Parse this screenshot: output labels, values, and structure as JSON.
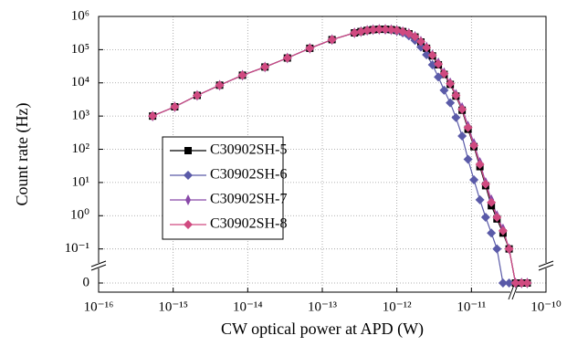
{
  "chart_data": {
    "type": "line",
    "x_label": "CW optical power at APD (W)",
    "y_label": "Count rate (Hz)",
    "xscale": "log",
    "yscale": "log",
    "grid": true,
    "legend_position": "left",
    "xlim": [
      1e-16,
      1e-10
    ],
    "xticks": [
      {
        "value": 1e-16,
        "label": "10⁻¹⁶"
      },
      {
        "value": 1e-15,
        "label": "10⁻¹⁵"
      },
      {
        "value": 1e-14,
        "label": "10⁻¹⁴"
      },
      {
        "value": 1e-13,
        "label": "10⁻¹³"
      },
      {
        "value": 1e-12,
        "label": "10⁻¹²"
      },
      {
        "value": 1e-11,
        "label": "10⁻¹¹"
      },
      {
        "value": 1e-10,
        "label": "10⁻¹⁰"
      }
    ],
    "ylim": [
      0.005,
      1000000
    ],
    "yticks": [
      0,
      {
        "value": 0.1,
        "label": "10⁻¹"
      },
      {
        "value": 1,
        "label": "10⁰"
      },
      {
        "value": 10,
        "label": "10¹"
      },
      {
        "value": 100,
        "label": "10²"
      },
      {
        "value": 1000,
        "label": "10³"
      },
      {
        "value": 10000,
        "label": "10⁴"
      },
      {
        "value": 100000,
        "label": "10⁵"
      },
      {
        "value": 1000000,
        "label": "10⁶"
      }
    ],
    "x": [
      5.3e-16,
      1.05e-15,
      2.1e-15,
      4.2e-15,
      8.5e-15,
      1.7e-14,
      3.4e-14,
      6.8e-14,
      1.35e-13,
      2.7e-13,
      3.3e-13,
      4e-13,
      4.8e-13,
      5.8e-13,
      7e-13,
      8.4e-13,
      1e-12,
      1.2e-12,
      1.45e-12,
      1.75e-12,
      2.1e-12,
      2.5e-12,
      3e-12,
      3.6e-12,
      4.3e-12,
      5.2e-12,
      6.2e-12,
      7.5e-12,
      9e-12,
      1.08e-11,
      1.3e-11,
      1.55e-11,
      1.85e-11,
      2.2e-11,
      2.65e-11,
      3.2e-11,
      3.9e-11,
      4.7e-11,
      5.6e-11
    ],
    "series": [
      {
        "name": "C30902SH-5",
        "color": "#000000",
        "marker": "square",
        "values": [
          1000,
          1900,
          4200,
          8500,
          17000,
          30000,
          56000,
          110000,
          200000,
          320000,
          350000,
          380000,
          400000,
          410000,
          410000,
          400000,
          380000,
          350000,
          300000,
          240000,
          170000,
          110000,
          65000,
          35000,
          18000,
          9000,
          4000,
          1500,
          400,
          120,
          30,
          8,
          2,
          0.8,
          0.3,
          0.1,
          0,
          0,
          0
        ]
      },
      {
        "name": "C30902SH-6",
        "color": "#5a5aa8",
        "marker": "diamond",
        "values": [
          1000,
          1900,
          4200,
          8500,
          17000,
          30000,
          56000,
          110000,
          200000,
          320000,
          350000,
          380000,
          400000,
          410000,
          400000,
          390000,
          360000,
          320000,
          260000,
          190000,
          120000,
          70000,
          35000,
          15000,
          6000,
          2500,
          900,
          250,
          50,
          12,
          3,
          0.9,
          0.3,
          0.1,
          0,
          0,
          0,
          0,
          0
        ]
      },
      {
        "name": "C30902SH-7",
        "color": "#8848a8",
        "marker": "thin-diamond",
        "values": [
          1000,
          1900,
          4200,
          8500,
          17000,
          30000,
          56000,
          110000,
          200000,
          320000,
          350000,
          380000,
          400000,
          410000,
          410000,
          400000,
          380000,
          350000,
          310000,
          250000,
          180000,
          120000,
          70000,
          40000,
          20000,
          10000,
          4500,
          1800,
          500,
          150,
          40,
          10,
          3,
          1,
          0.4,
          0.1,
          0,
          0,
          0
        ]
      },
      {
        "name": "C30902SH-8",
        "color": "#d04a80",
        "marker": "diamond",
        "values": [
          1000,
          1900,
          4200,
          8500,
          17000,
          30000,
          56000,
          110000,
          200000,
          320000,
          350000,
          380000,
          400000,
          410000,
          410000,
          400000,
          380000,
          350000,
          305000,
          245000,
          175000,
          115000,
          68000,
          37000,
          19000,
          9500,
          4200,
          1600,
          450,
          130,
          35,
          9,
          2.5,
          0.9,
          0.35,
          0.1,
          0,
          0,
          0
        ]
      }
    ]
  }
}
